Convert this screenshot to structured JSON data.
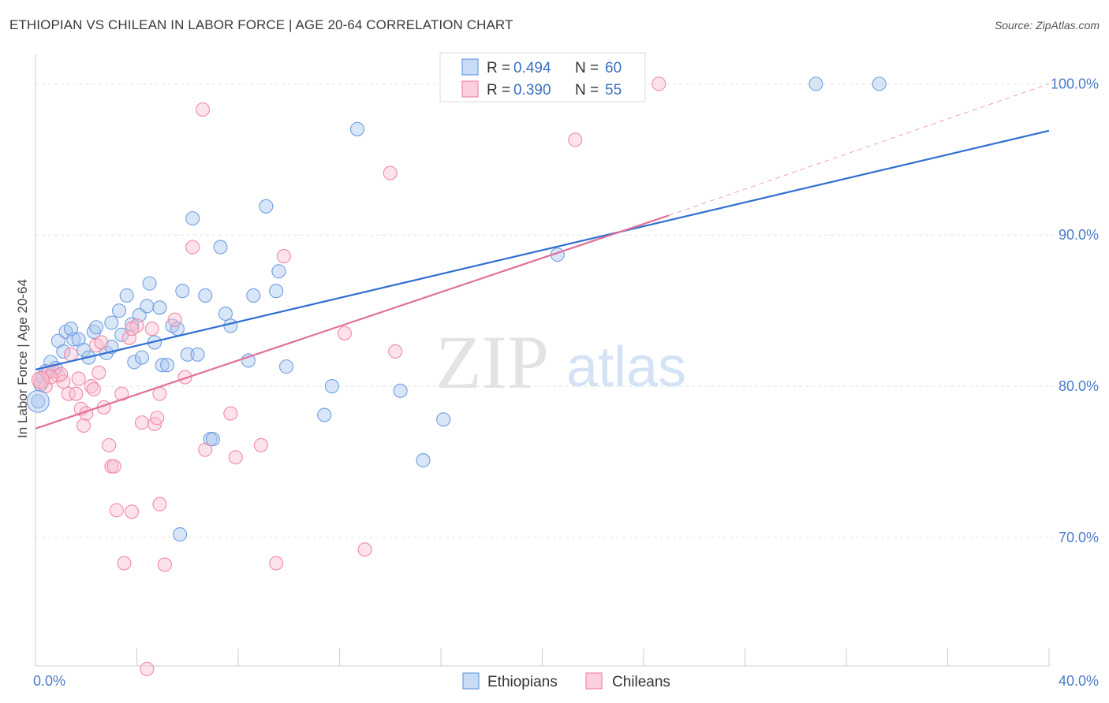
{
  "header": {
    "title": "ETHIOPIAN VS CHILEAN IN LABOR FORCE | AGE 20-64 CORRELATION CHART",
    "source": "Source: ZipAtlas.com"
  },
  "watermark": {
    "zip": "ZIP",
    "atlas": "atlas"
  },
  "legend": {
    "r_label": "R =",
    "n_label": "N =",
    "items": [
      {
        "r": "0.494",
        "n": "60",
        "color": "#6f9fe0"
      },
      {
        "r": "0.390",
        "n": "55",
        "color": "#f08aa8"
      }
    ]
  },
  "bottom_legend": [
    "Ethiopians",
    "Chileans"
  ],
  "chart_data": {
    "type": "scatter",
    "title": "ETHIOPIAN VS CHILEAN IN LABOR FORCE | AGE 20-64 CORRELATION CHART",
    "ylabel": "In Labor Force | Age 20-64",
    "xlabel": "",
    "xlim": [
      0,
      40
    ],
    "ylim": [
      61.5,
      102
    ],
    "x_tick_labels": [
      {
        "value": 0,
        "label": "0.0%"
      },
      {
        "value": 40,
        "label": "40.0%"
      }
    ],
    "y_tick_labels": [
      {
        "value": 70,
        "label": "70.0%"
      },
      {
        "value": 80,
        "label": "80.0%"
      },
      {
        "value": 90,
        "label": "90.0%"
      },
      {
        "value": 100,
        "label": "100.0%"
      }
    ],
    "grid": true,
    "series": [
      {
        "name": "Ethiopians",
        "color": "#6f9fe0",
        "trend": {
          "x": [
            0,
            40
          ],
          "y": [
            81.1,
            96.9
          ]
        },
        "points": [
          [
            0.1,
            79.0
          ],
          [
            0.2,
            80.1
          ],
          [
            0.3,
            80.6
          ],
          [
            0.4,
            81.0
          ],
          [
            0.6,
            81.6
          ],
          [
            0.8,
            81.2
          ],
          [
            0.9,
            83.0
          ],
          [
            1.1,
            82.3
          ],
          [
            1.2,
            83.6
          ],
          [
            1.4,
            83.8
          ],
          [
            1.5,
            83.1
          ],
          [
            1.7,
            83.1
          ],
          [
            1.9,
            82.4
          ],
          [
            2.1,
            81.9
          ],
          [
            2.3,
            83.6
          ],
          [
            2.4,
            83.9
          ],
          [
            2.8,
            82.2
          ],
          [
            3.0,
            84.2
          ],
          [
            3.0,
            82.6
          ],
          [
            3.3,
            85.0
          ],
          [
            3.4,
            83.4
          ],
          [
            3.6,
            86.0
          ],
          [
            3.8,
            84.1
          ],
          [
            3.9,
            81.6
          ],
          [
            4.1,
            84.7
          ],
          [
            4.2,
            81.9
          ],
          [
            4.4,
            85.3
          ],
          [
            4.5,
            86.8
          ],
          [
            4.7,
            82.9
          ],
          [
            4.9,
            85.2
          ],
          [
            5.0,
            81.4
          ],
          [
            5.2,
            81.4
          ],
          [
            5.4,
            84.0
          ],
          [
            5.6,
            83.8
          ],
          [
            5.8,
            86.3
          ],
          [
            6.0,
            82.1
          ],
          [
            6.2,
            91.1
          ],
          [
            6.4,
            82.1
          ],
          [
            6.7,
            86.0
          ],
          [
            6.9,
            76.5
          ],
          [
            7.0,
            76.5
          ],
          [
            7.3,
            89.2
          ],
          [
            7.5,
            84.8
          ],
          [
            7.7,
            84.0
          ],
          [
            8.4,
            81.7
          ],
          [
            8.6,
            86.0
          ],
          [
            9.1,
            91.9
          ],
          [
            9.5,
            86.3
          ],
          [
            9.6,
            87.6
          ],
          [
            9.9,
            81.3
          ],
          [
            11.4,
            78.1
          ],
          [
            11.7,
            80.0
          ],
          [
            12.7,
            97.0
          ],
          [
            14.4,
            79.7
          ],
          [
            15.3,
            75.1
          ],
          [
            16.1,
            77.8
          ],
          [
            20.6,
            88.7
          ],
          [
            30.8,
            100.0
          ],
          [
            33.3,
            100.0
          ],
          [
            5.7,
            70.2
          ]
        ]
      },
      {
        "name": "Chileans",
        "color": "#f08aa8",
        "trend": {
          "x": [
            0,
            25
          ],
          "y": [
            77.2,
            91.3
          ]
        },
        "trend_extension": {
          "x": [
            25,
            40
          ],
          "y": [
            91.3,
            100.0
          ]
        },
        "points": [
          [
            0.2,
            80.4
          ],
          [
            0.4,
            80.0
          ],
          [
            0.5,
            80.9
          ],
          [
            0.7,
            81.0
          ],
          [
            0.9,
            80.7
          ],
          [
            1.1,
            80.3
          ],
          [
            1.3,
            79.5
          ],
          [
            1.4,
            82.1
          ],
          [
            1.6,
            79.5
          ],
          [
            1.7,
            80.5
          ],
          [
            1.8,
            78.5
          ],
          [
            1.9,
            77.4
          ],
          [
            2.0,
            78.2
          ],
          [
            2.2,
            80.0
          ],
          [
            2.4,
            82.7
          ],
          [
            2.5,
            80.9
          ],
          [
            2.7,
            78.6
          ],
          [
            2.9,
            76.1
          ],
          [
            3.0,
            74.7
          ],
          [
            3.1,
            74.7
          ],
          [
            3.2,
            71.8
          ],
          [
            3.4,
            79.5
          ],
          [
            3.5,
            68.3
          ],
          [
            3.7,
            83.2
          ],
          [
            3.8,
            71.7
          ],
          [
            4.0,
            84.0
          ],
          [
            4.2,
            77.6
          ],
          [
            4.4,
            61.3
          ],
          [
            4.6,
            83.8
          ],
          [
            4.7,
            77.5
          ],
          [
            4.8,
            77.9
          ],
          [
            4.9,
            72.2
          ],
          [
            5.1,
            68.2
          ],
          [
            5.5,
            84.4
          ],
          [
            5.9,
            80.6
          ],
          [
            6.2,
            89.2
          ],
          [
            6.6,
            98.3
          ],
          [
            6.7,
            75.8
          ],
          [
            7.7,
            78.2
          ],
          [
            7.9,
            75.3
          ],
          [
            8.9,
            76.1
          ],
          [
            9.5,
            68.3
          ],
          [
            9.8,
            88.6
          ],
          [
            12.2,
            83.5
          ],
          [
            13.0,
            69.2
          ],
          [
            14.0,
            94.1
          ],
          [
            14.2,
            82.3
          ],
          [
            21.3,
            96.3
          ],
          [
            24.6,
            100.0
          ],
          [
            2.6,
            82.9
          ],
          [
            1.0,
            80.8
          ],
          [
            3.8,
            83.8
          ],
          [
            0.6,
            80.6
          ],
          [
            4.9,
            79.5
          ],
          [
            2.3,
            79.8
          ]
        ]
      }
    ]
  }
}
